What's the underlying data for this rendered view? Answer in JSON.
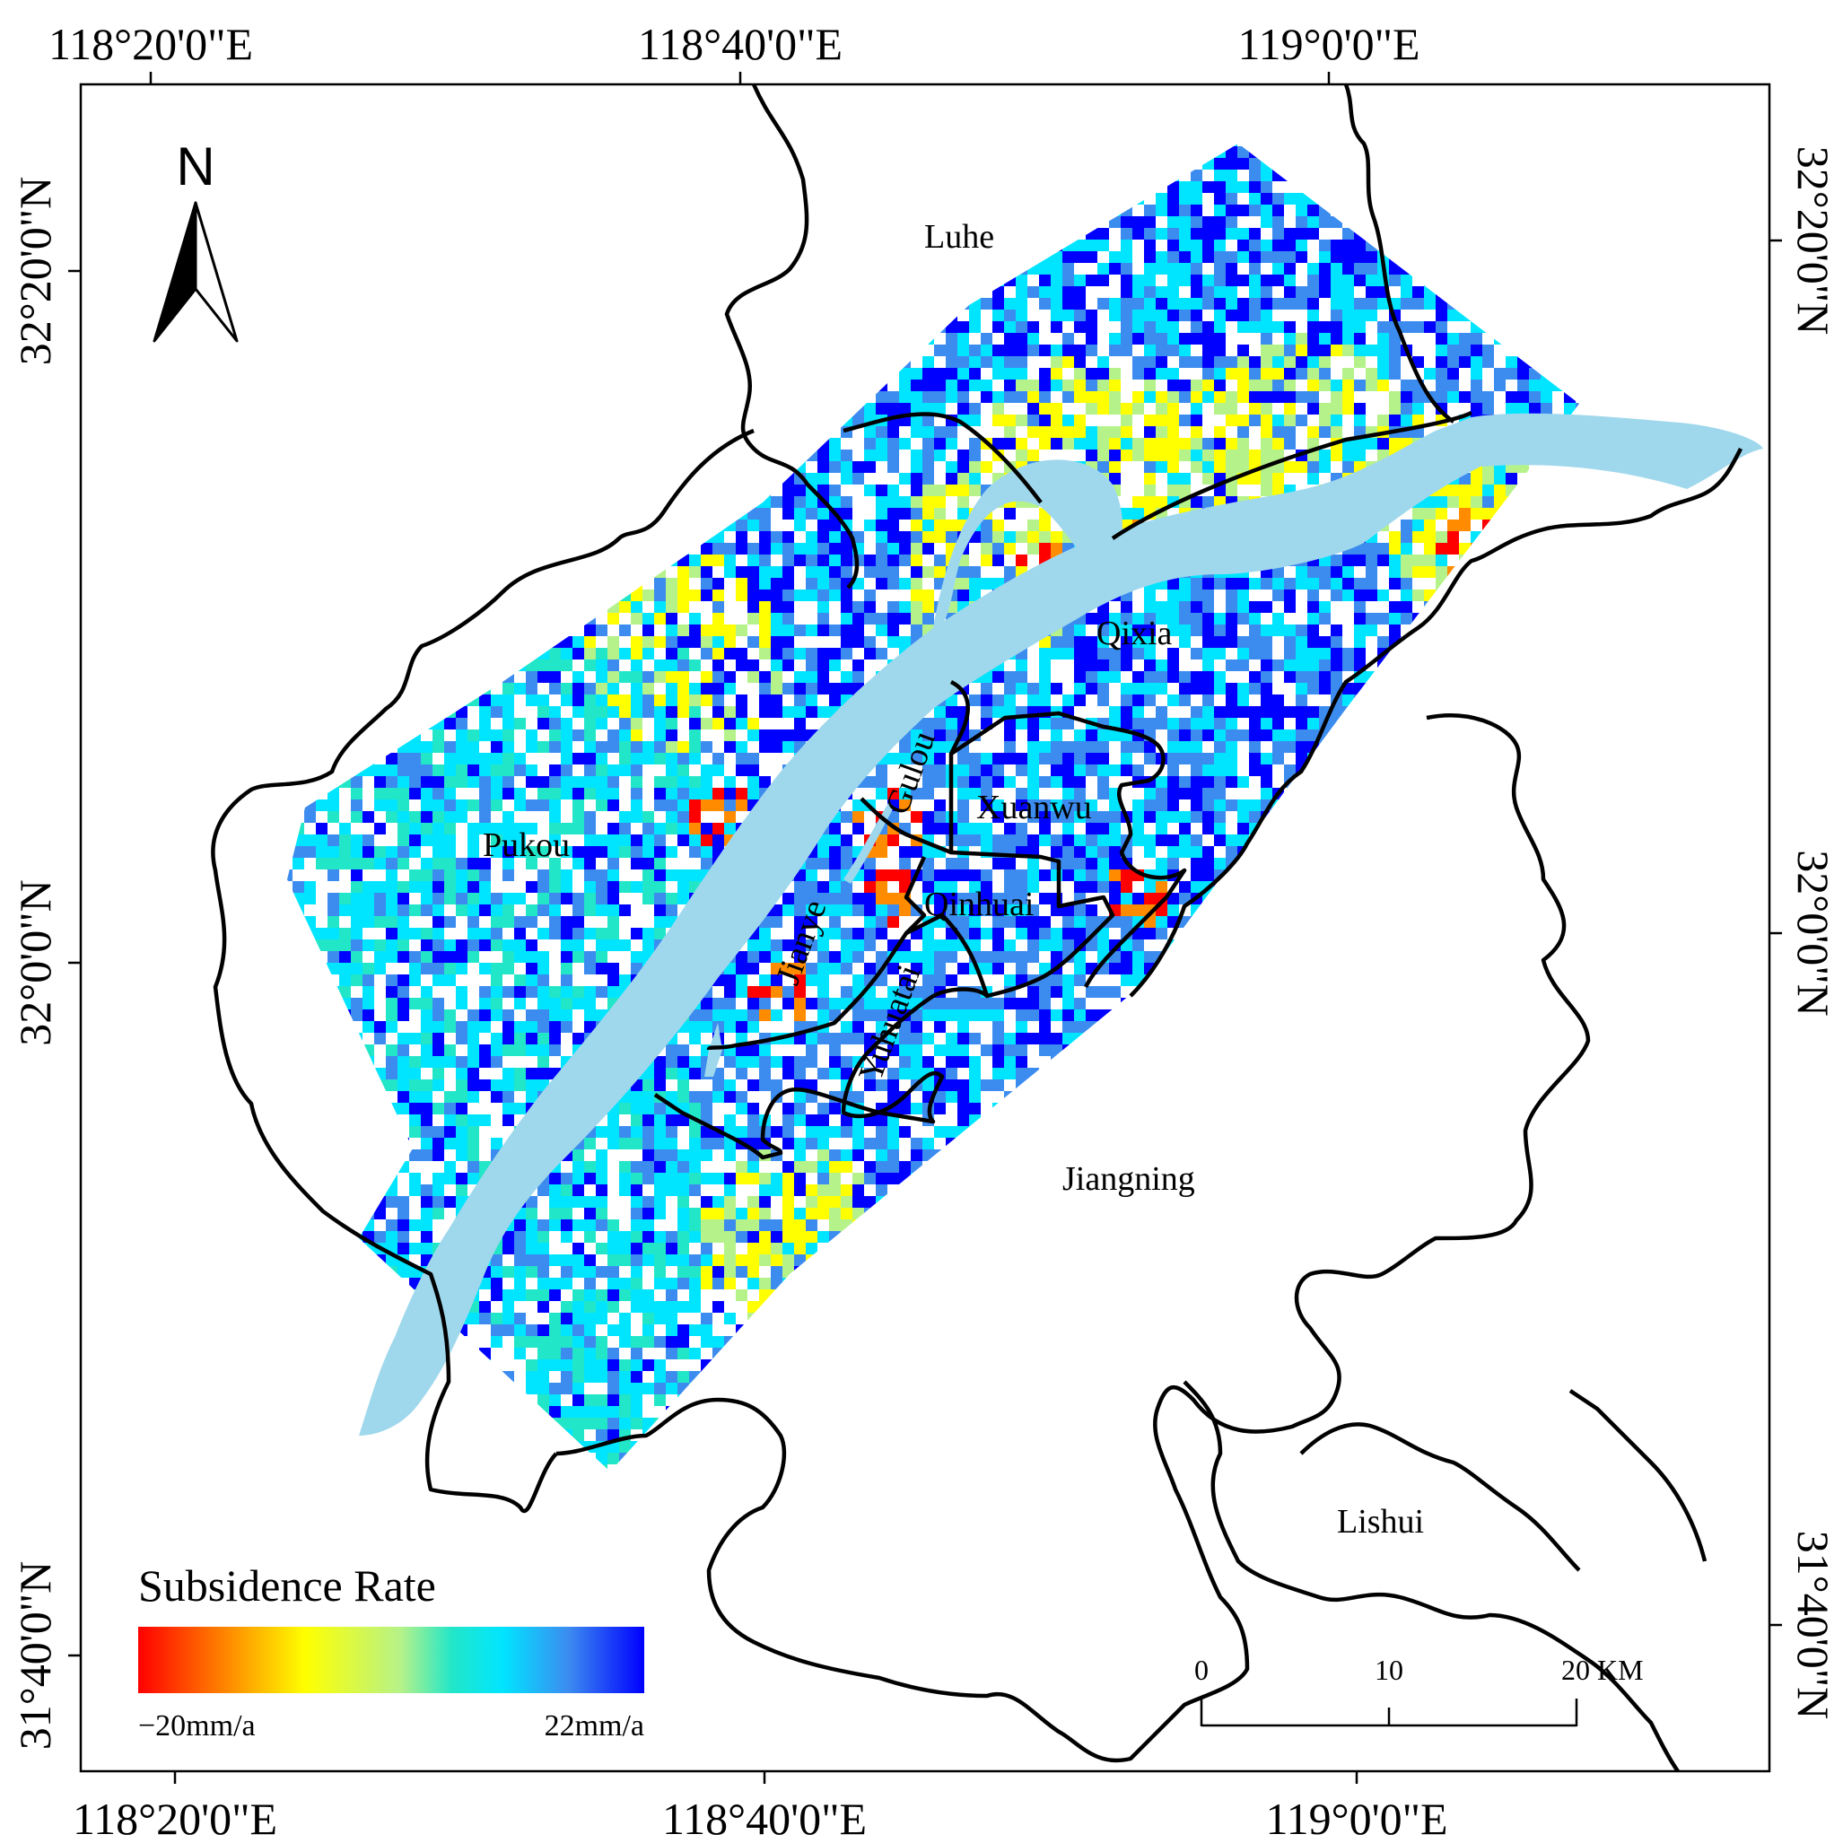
{
  "map": {
    "top_ticks": [
      "118°20'0\"E",
      "118°40'0\"E",
      "119°0'0\"E"
    ],
    "bottom_ticks": [
      "118°20'0\"E",
      "118°40'0\"E",
      "119°0'0\"E"
    ],
    "left_ticks": [
      "32°20'0\"N",
      "32°0'0\"N",
      "31°40'0\"N"
    ],
    "right_ticks": [
      "32°20'0\"N",
      "32°0'0\"N",
      "31°40'0\"N"
    ],
    "districts": {
      "luhe": "Luhe",
      "pukou": "Pukou",
      "qixia": "Qixia",
      "gulou": "Gulou",
      "xuanwu": "Xuanwu",
      "qinhuai": "Qinhuai",
      "jianye": "Jianye",
      "yuhuatai": "Yuhuatai",
      "jiangning": "Jiangning",
      "lishui": "Lishui"
    },
    "north_arrow": {
      "label": "N",
      "icon": "north-arrow-icon"
    },
    "legend": {
      "title": "Subsidence Rate",
      "min_label": "−20mm/a",
      "max_label": "22mm/a",
      "min_value": -20,
      "max_value": 22,
      "colors": [
        "#ff0000",
        "#ff8c00",
        "#ffff00",
        "#b5f28a",
        "#22e6c8",
        "#00e5ff",
        "#3c8cf0",
        "#0000ff"
      ]
    },
    "scale_bar": {
      "labels": [
        "0",
        "10",
        "20 KM"
      ],
      "unit": "KM"
    },
    "river_color": "#9fd8ec"
  }
}
